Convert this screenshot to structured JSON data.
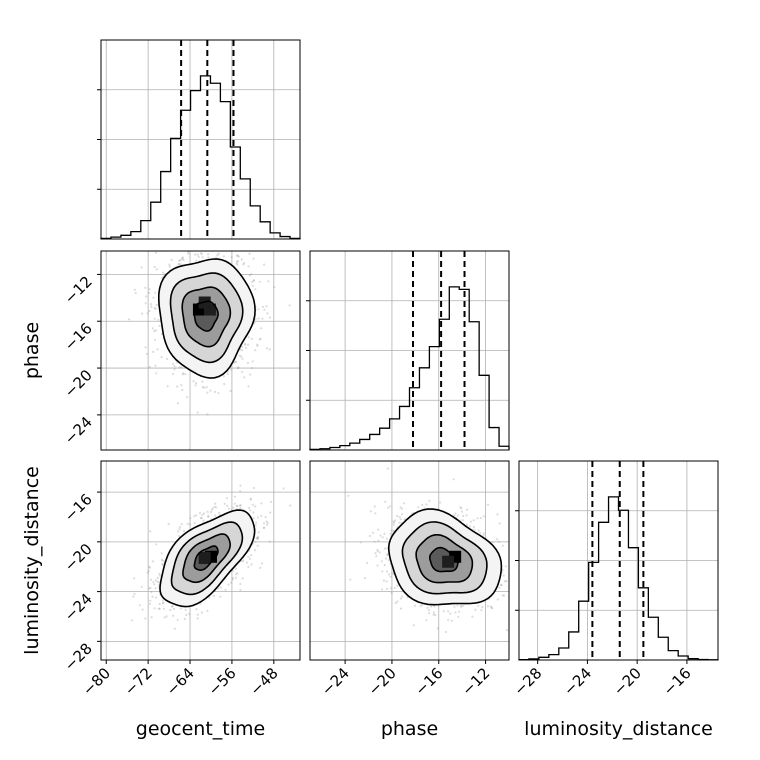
{
  "chart_data": {
    "type": "corner",
    "parameters": [
      "geocent_time",
      "phase",
      "luminosity_distance"
    ],
    "axis_ranges": {
      "geocent_time": [
        -81,
        -43
      ],
      "phase": [
        -27,
        -10
      ],
      "luminosity_distance": [
        -29.5,
        -13.5
      ]
    },
    "ticks": {
      "geocent_time": [
        -80,
        -72,
        -64,
        -56,
        -48
      ],
      "phase": [
        -24,
        -20,
        -16,
        -12
      ],
      "luminosity_distance": [
        -28,
        -24,
        -20,
        -16
      ]
    },
    "tick_labels": {
      "geocent_time": [
        "−80",
        "−72",
        "−64",
        "−56",
        "−48"
      ],
      "phase": [
        "−24",
        "−20",
        "−16",
        "−12"
      ],
      "luminosity_distance": [
        "−28",
        "−24",
        "−20",
        "−16"
      ]
    },
    "grid": true,
    "quantiles": {
      "geocent_time": [
        -65.7,
        -60.7,
        -55.7
      ],
      "phase": [
        -18.2,
        -15.8,
        -13.8
      ],
      "luminosity_distance": [
        -23.6,
        -21.4,
        -19.5
      ]
    },
    "histograms": {
      "geocent_time": {
        "bin_edges": [
          -81,
          -79.1,
          -77.2,
          -75.3,
          -73.4,
          -71.5,
          -69.6,
          -67.7,
          -65.8,
          -63.9,
          -62,
          -60.1,
          -58.2,
          -56.3,
          -54.4,
          -52.5,
          -50.6,
          -48.7,
          -46.8,
          -44.9,
          -43
        ],
        "counts": [
          0.5,
          1.5,
          3,
          6,
          15,
          30,
          55,
          82,
          105,
          121,
          133,
          127,
          112,
          75,
          49,
          27,
          14,
          5,
          2,
          0.5
        ]
      },
      "phase": {
        "bin_edges": [
          -27,
          -26.15,
          -25.3,
          -24.45,
          -23.6,
          -22.75,
          -21.9,
          -21.05,
          -20.2,
          -19.35,
          -18.5,
          -17.65,
          -16.8,
          -15.95,
          -15.1,
          -14.25,
          -13.4,
          -12.55,
          -11.7,
          -10.85,
          -10
        ],
        "counts": [
          0.5,
          1,
          2,
          3.5,
          5.5,
          8.5,
          12.5,
          17.5,
          25,
          35,
          50,
          66,
          83,
          105,
          131,
          129,
          103,
          60,
          18,
          3
        ]
      },
      "luminosity_distance": {
        "bin_edges": [
          -29.5,
          -28.7,
          -27.9,
          -27.1,
          -26.3,
          -25.5,
          -24.7,
          -23.9,
          -23.1,
          -22.3,
          -21.5,
          -20.7,
          -19.9,
          -19.1,
          -18.3,
          -17.5,
          -16.7,
          -15.9,
          -15.1,
          -14.3,
          -13.5
        ],
        "counts": [
          0.3,
          0.8,
          2,
          4,
          9,
          21,
          44,
          73,
          103,
          122,
          112,
          84,
          54,
          32,
          17,
          7,
          3,
          1,
          0.4,
          0.2
        ]
      }
    },
    "joint": [
      {
        "x": "geocent_time",
        "y": "phase",
        "center": [
          -61,
          -15.5
        ],
        "sd": [
          4.5,
          2.5
        ],
        "rho": 0.0,
        "peak": [
          [
            -62.3,
            -15.0
          ],
          [
            -60.2,
            -15.0
          ],
          [
            -61.2,
            -14.4
          ]
        ]
      },
      {
        "x": "geocent_time",
        "y": "luminosity_distance",
        "center": [
          -61,
          -21.3
        ],
        "sd": [
          4.5,
          1.9
        ],
        "rho": 0.6,
        "peak": [
          [
            -60.0,
            -21.2
          ],
          [
            -61.2,
            -21.3
          ]
        ]
      },
      {
        "x": "phase",
        "y": "luminosity_distance",
        "center": [
          -15.6,
          -21.5
        ],
        "sd": [
          2.4,
          1.9
        ],
        "rho": -0.2,
        "peak": [
          [
            -14.6,
            -21.2
          ],
          [
            -15.2,
            -21.6
          ]
        ]
      }
    ],
    "contour_levels_sigma": [
      0.5,
      1.0,
      1.5,
      2.0
    ]
  }
}
